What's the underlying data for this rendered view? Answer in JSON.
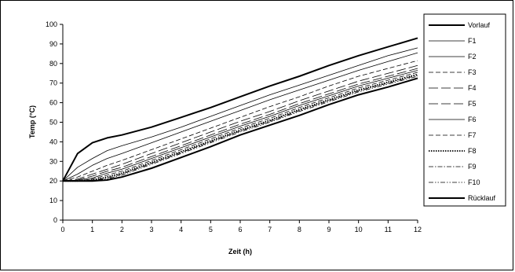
{
  "chart_data": {
    "type": "line",
    "title": "",
    "xlabel": "Zeit (h)",
    "ylabel": "Temp (°C)",
    "xlim": [
      0,
      12
    ],
    "ylim": [
      0,
      100
    ],
    "xticks": [
      0,
      1,
      2,
      3,
      4,
      5,
      6,
      7,
      8,
      9,
      10,
      11,
      12
    ],
    "yticks": [
      0,
      10,
      20,
      30,
      40,
      50,
      60,
      70,
      80,
      90,
      100
    ],
    "grid": false,
    "legend_position": "right",
    "series": [
      {
        "name": "Vorlauf",
        "style": "solid-bold",
        "x": [
          0,
          0.5,
          1,
          1.5,
          2,
          3,
          4,
          5,
          6,
          7,
          8,
          9,
          10,
          11,
          12
        ],
        "y": [
          20,
          34,
          39.5,
          42,
          43.5,
          47.5,
          52.5,
          57.5,
          63,
          68.5,
          73.5,
          79,
          84,
          88.5,
          93
        ]
      },
      {
        "name": "F1",
        "style": "solid",
        "x": [
          0,
          0.5,
          1,
          1.5,
          2,
          3,
          4,
          5,
          6,
          7,
          8,
          9,
          10,
          11,
          12
        ],
        "y": [
          20,
          27,
          31.5,
          35.5,
          38,
          42.5,
          47.5,
          53,
          58.5,
          64,
          69,
          74,
          79,
          84,
          88
        ]
      },
      {
        "name": "F2",
        "style": "solid",
        "x": [
          0,
          0.5,
          1,
          1.5,
          2,
          3,
          4,
          5,
          6,
          7,
          8,
          9,
          10,
          11,
          12
        ],
        "y": [
          20,
          23.5,
          28,
          31.5,
          34,
          39.5,
          45,
          50.5,
          56,
          61.5,
          66.5,
          71.5,
          76.5,
          81,
          85.5
        ]
      },
      {
        "name": "F3",
        "style": "dashed",
        "x": [
          0,
          0.5,
          1,
          1.5,
          2,
          3,
          4,
          5,
          6,
          7,
          8,
          9,
          10,
          11,
          12
        ],
        "y": [
          20,
          22,
          25,
          28,
          30.5,
          36,
          41.5,
          47,
          52.5,
          58,
          63,
          68.5,
          73.5,
          77.5,
          81.5
        ]
      },
      {
        "name": "F4",
        "style": "long-dash",
        "x": [
          0,
          0.5,
          1,
          1.5,
          2,
          3,
          4,
          5,
          6,
          7,
          8,
          9,
          10,
          11,
          12
        ],
        "y": [
          20,
          21,
          23.5,
          26,
          28.5,
          34,
          39.5,
          45,
          50.5,
          55.5,
          61,
          66,
          71,
          75,
          79
        ]
      },
      {
        "name": "F5",
        "style": "long-dash",
        "x": [
          0,
          0.5,
          1,
          1.5,
          2,
          3,
          4,
          5,
          6,
          7,
          8,
          9,
          10,
          11,
          12
        ],
        "y": [
          20,
          20.5,
          22.5,
          25,
          27,
          32.5,
          38,
          43.5,
          49,
          54,
          59.5,
          64.5,
          69.5,
          73.5,
          77.5
        ]
      },
      {
        "name": "F6",
        "style": "solid",
        "x": [
          0,
          0.5,
          1,
          1.5,
          2,
          3,
          4,
          5,
          6,
          7,
          8,
          9,
          10,
          11,
          12
        ],
        "y": [
          20,
          20.5,
          21.5,
          24,
          26,
          31.5,
          37,
          42.5,
          48,
          53,
          58.5,
          63.5,
          68.5,
          72.5,
          76.5
        ]
      },
      {
        "name": "F7",
        "style": "dashed",
        "x": [
          0,
          0.5,
          1,
          1.5,
          2,
          3,
          4,
          5,
          6,
          7,
          8,
          9,
          10,
          11,
          12
        ],
        "y": [
          20,
          20,
          21,
          23,
          25,
          30.5,
          36,
          41.5,
          47,
          52,
          57.5,
          62.5,
          67.5,
          71.5,
          75.5
        ]
      },
      {
        "name": "F8",
        "style": "dotted",
        "x": [
          0,
          0.5,
          1,
          1.5,
          2,
          3,
          4,
          5,
          6,
          7,
          8,
          9,
          10,
          11,
          12
        ],
        "y": [
          20,
          20,
          20.5,
          22,
          24,
          29.5,
          35,
          40.5,
          46,
          51,
          56.5,
          61.5,
          66.5,
          70.5,
          74.5
        ]
      },
      {
        "name": "F9",
        "style": "dash-dot",
        "x": [
          0,
          0.5,
          1,
          1.5,
          2,
          3,
          4,
          5,
          6,
          7,
          8,
          9,
          10,
          11,
          12
        ],
        "y": [
          20,
          20,
          20.5,
          21.5,
          23.5,
          29,
          34.5,
          40,
          45.5,
          50.5,
          56,
          61,
          66,
          70,
          74
        ]
      },
      {
        "name": "F10",
        "style": "dash-dot-dot",
        "x": [
          0,
          0.5,
          1,
          1.5,
          2,
          3,
          4,
          5,
          6,
          7,
          8,
          9,
          10,
          11,
          12
        ],
        "y": [
          20,
          20,
          20.5,
          21,
          23,
          28.5,
          34,
          39.5,
          45,
          50,
          55.5,
          60.5,
          65.5,
          69.5,
          73.5
        ]
      },
      {
        "name": "Rücklauf",
        "style": "solid-bold",
        "x": [
          0,
          0.5,
          1,
          1.5,
          2,
          3,
          4,
          5,
          6,
          7,
          8,
          9,
          10,
          11,
          12
        ],
        "y": [
          20,
          20,
          20,
          20.5,
          22,
          26.5,
          32,
          37.5,
          43.5,
          48.5,
          53.5,
          59,
          64,
          68,
          72.5
        ]
      }
    ]
  }
}
